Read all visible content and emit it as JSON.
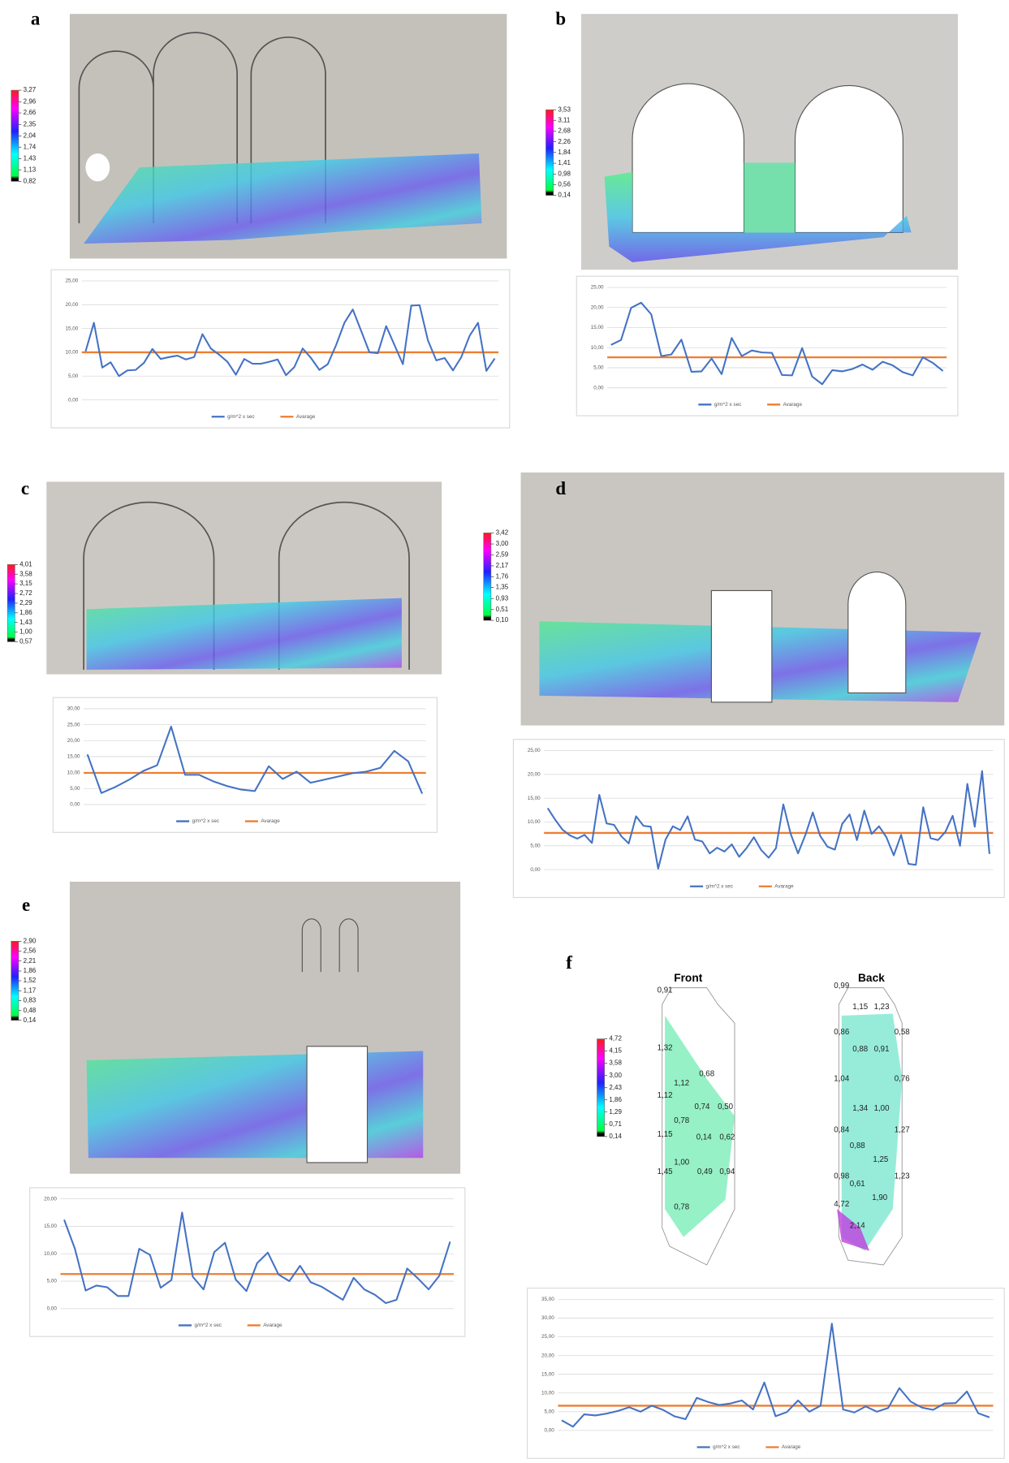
{
  "chart_data": [
    {
      "type": "line",
      "panel": "a",
      "colorbar": {
        "ticks": [
          {
            "value": 3.27,
            "label": "3,27"
          },
          {
            "value": 2.96,
            "label": "2,96"
          },
          {
            "value": 2.66,
            "label": "2,66"
          },
          {
            "value": 2.35,
            "label": "2,35"
          },
          {
            "value": 2.04,
            "label": "2,04"
          },
          {
            "value": 1.74,
            "label": "1,74"
          },
          {
            "value": 1.43,
            "label": "1,43"
          },
          {
            "value": 1.13,
            "label": "1,13"
          },
          {
            "value": 0.82,
            "label": "0,82"
          }
        ]
      },
      "ylim": [
        0,
        25
      ],
      "yticks": [
        {
          "value": 0,
          "label": "0,00"
        },
        {
          "value": 5,
          "label": "5,00"
        },
        {
          "value": 10,
          "label": "10,00"
        },
        {
          "value": 15,
          "label": "15,00"
        },
        {
          "value": 20,
          "label": "20,00"
        },
        {
          "value": 25,
          "label": "25,00"
        }
      ],
      "series": [
        {
          "name": "g/m^2 x sec",
          "color": "#4472c4",
          "values": [
            10.2,
            16.2,
            6.8,
            7.9,
            5.0,
            6.2,
            6.3,
            7.8,
            10.7,
            8.6,
            9.0,
            9.3,
            8.5,
            9.0,
            13.8,
            10.8,
            9.5,
            8.0,
            5.3,
            8.6,
            7.6,
            7.6,
            8.0,
            8.5,
            5.2,
            6.9,
            10.8,
            8.8,
            6.3,
            7.5,
            11.5,
            16.2,
            19.0,
            14.5,
            10.0,
            9.8,
            15.5,
            11.5,
            7.5,
            19.8,
            19.9,
            12.5,
            8.3,
            8.8,
            6.2,
            9.0,
            13.5,
            16.2,
            6.1,
            8.7
          ]
        }
      ],
      "reference_lines": [
        {
          "name": "Avarage",
          "color": "#ed7d31",
          "value": 10.0
        }
      ]
    },
    {
      "type": "line",
      "panel": "b",
      "colorbar": {
        "ticks": [
          {
            "value": 3.53,
            "label": "3,53"
          },
          {
            "value": 3.11,
            "label": "3,11"
          },
          {
            "value": 2.68,
            "label": "2,68"
          },
          {
            "value": 2.26,
            "label": "2,26"
          },
          {
            "value": 1.84,
            "label": "1,84"
          },
          {
            "value": 1.41,
            "label": "1,41"
          },
          {
            "value": 0.98,
            "label": "0,98"
          },
          {
            "value": 0.56,
            "label": "0,56"
          },
          {
            "value": 0.14,
            "label": "0,14"
          }
        ]
      },
      "ylim": [
        0,
        25
      ],
      "yticks": [
        {
          "value": 0,
          "label": "0,00"
        },
        {
          "value": 5,
          "label": "5,00"
        },
        {
          "value": 10,
          "label": "10,00"
        },
        {
          "value": 15,
          "label": "15,00"
        },
        {
          "value": 20,
          "label": "20,00"
        },
        {
          "value": 25,
          "label": "25,00"
        }
      ],
      "series": [
        {
          "name": "g/m^2 x sec",
          "color": "#4472c4",
          "values": [
            10.7,
            11.9,
            19.9,
            21.2,
            18.3,
            7.9,
            8.3,
            12.0,
            4.0,
            4.1,
            7.3,
            3.4,
            12.4,
            7.9,
            9.3,
            8.8,
            8.7,
            3.2,
            3.1,
            9.9,
            2.8,
            0.9,
            4.4,
            4.1,
            4.7,
            5.8,
            4.5,
            6.5,
            5.6,
            3.9,
            3.1,
            7.6,
            6.2,
            4.2
          ]
        }
      ],
      "reference_lines": [
        {
          "name": "Avarage",
          "color": "#ed7d31",
          "value": 7.6
        }
      ]
    },
    {
      "type": "line",
      "panel": "c",
      "colorbar": {
        "ticks": [
          {
            "value": 4.01,
            "label": "4,01"
          },
          {
            "value": 3.58,
            "label": "3,58"
          },
          {
            "value": 3.15,
            "label": "3,15"
          },
          {
            "value": 2.72,
            "label": "2,72"
          },
          {
            "value": 2.29,
            "label": "2,29"
          },
          {
            "value": 1.86,
            "label": "1,86"
          },
          {
            "value": 1.43,
            "label": "1,43"
          },
          {
            "value": 1.0,
            "label": "1,00"
          },
          {
            "value": 0.57,
            "label": "0,57"
          }
        ]
      },
      "ylim": [
        0,
        30
      ],
      "yticks": [
        {
          "value": 0,
          "label": "0,00"
        },
        {
          "value": 5,
          "label": "5,00"
        },
        {
          "value": 10,
          "label": "10,00"
        },
        {
          "value": 15,
          "label": "15,00"
        },
        {
          "value": 20,
          "label": "20,00"
        },
        {
          "value": 25,
          "label": "25,00"
        },
        {
          "value": 30,
          "label": "30,00"
        }
      ],
      "series": [
        {
          "name": "g/m^2 x sec",
          "color": "#4472c4",
          "values": [
            15.7,
            3.6,
            5.5,
            7.8,
            10.5,
            12.3,
            24.4,
            9.3,
            9.3,
            7.3,
            5.8,
            4.7,
            4.2,
            12.0,
            8.0,
            10.3,
            6.8,
            7.8,
            8.8,
            9.8,
            10.3,
            11.5,
            16.8,
            13.5,
            3.4
          ]
        }
      ],
      "reference_lines": [
        {
          "name": "Avarage",
          "color": "#ed7d31",
          "value": 9.9
        }
      ]
    },
    {
      "type": "line",
      "panel": "d",
      "colorbar": {
        "ticks": [
          {
            "value": 3.42,
            "label": "3,42"
          },
          {
            "value": 3.0,
            "label": "3,00"
          },
          {
            "value": 2.59,
            "label": "2,59"
          },
          {
            "value": 2.17,
            "label": "2,17"
          },
          {
            "value": 1.76,
            "label": "1,76"
          },
          {
            "value": 1.35,
            "label": "1,35"
          },
          {
            "value": 0.93,
            "label": "0,93"
          },
          {
            "value": 0.51,
            "label": "0,51"
          },
          {
            "value": 0.1,
            "label": "0,10"
          }
        ]
      },
      "ylim": [
        0,
        25
      ],
      "yticks": [
        {
          "value": 0,
          "label": "0,00"
        },
        {
          "value": 5,
          "label": "5,00"
        },
        {
          "value": 10,
          "label": "10,00"
        },
        {
          "value": 15,
          "label": "15,00"
        },
        {
          "value": 20,
          "label": "20,00"
        },
        {
          "value": 25,
          "label": "25,00"
        }
      ],
      "series": [
        {
          "name": "g/m^2 x sec",
          "color": "#4472c4",
          "values": [
            12.9,
            10.5,
            8.4,
            7.2,
            6.5,
            7.3,
            5.6,
            15.7,
            9.7,
            9.4,
            7.0,
            5.5,
            11.2,
            9.2,
            9.0,
            0.2,
            6.3,
            9.1,
            8.3,
            11.2,
            6.3,
            5.9,
            3.4,
            4.6,
            3.8,
            5.3,
            2.7,
            4.5,
            6.8,
            4.1,
            2.5,
            4.5,
            13.7,
            7.5,
            3.4,
            7.3,
            12.0,
            7.1,
            4.8,
            4.2,
            9.6,
            11.6,
            6.2,
            12.4,
            7.5,
            9.1,
            6.8,
            3.0,
            7.3,
            1.2,
            1.0,
            13.1,
            6.6,
            6.2,
            7.9,
            11.3,
            5.0,
            18.0,
            9.0,
            20.7,
            3.3
          ]
        }
      ],
      "reference_lines": [
        {
          "name": "Avarage",
          "color": "#ed7d31",
          "value": 7.7
        }
      ]
    },
    {
      "type": "line",
      "panel": "e",
      "colorbar": {
        "ticks": [
          {
            "value": 2.9,
            "label": "2,90"
          },
          {
            "value": 2.56,
            "label": "2,56"
          },
          {
            "value": 2.21,
            "label": "2,21"
          },
          {
            "value": 1.86,
            "label": "1,86"
          },
          {
            "value": 1.52,
            "label": "1,52"
          },
          {
            "value": 1.17,
            "label": "1,17"
          },
          {
            "value": 0.83,
            "label": "0,83"
          },
          {
            "value": 0.48,
            "label": "0,48"
          },
          {
            "value": 0.14,
            "label": "0,14"
          }
        ]
      },
      "ylim": [
        0,
        20
      ],
      "yticks": [
        {
          "value": 0,
          "label": "0,00"
        },
        {
          "value": 5,
          "label": "5,00"
        },
        {
          "value": 10,
          "label": "10,00"
        },
        {
          "value": 15,
          "label": "15,00"
        },
        {
          "value": 20,
          "label": "20,00"
        }
      ],
      "series": [
        {
          "name": "g/m^2 x sec",
          "color": "#4472c4",
          "values": [
            16.2,
            10.9,
            3.3,
            4.2,
            3.9,
            2.3,
            2.3,
            10.9,
            9.8,
            3.8,
            5.2,
            17.5,
            5.8,
            3.5,
            10.3,
            12.0,
            5.3,
            3.2,
            8.3,
            10.2,
            6.2,
            5.0,
            7.8,
            4.8,
            4.0,
            2.8,
            1.6,
            5.6,
            3.5,
            2.5,
            1.0,
            1.6,
            7.3,
            5.5,
            3.5,
            6.0,
            12.2
          ]
        }
      ],
      "reference_lines": [
        {
          "name": "Avarage",
          "color": "#ed7d31",
          "value": 6.3
        }
      ]
    },
    {
      "type": "line",
      "panel": "f",
      "views": [
        {
          "title": "Front",
          "labels": [
            "0,91",
            "1,32",
            "0,68",
            "1,12",
            "1,12",
            "0,74",
            "0,50",
            "0,78",
            "1,15",
            "0,14",
            "0,62",
            "1,00",
            "1,45",
            "0,49",
            "0,94",
            "0,78"
          ]
        },
        {
          "title": "Back",
          "labels": [
            "0,99",
            "1,15",
            "1,23",
            "0,86",
            "0,58",
            "0,88",
            "0,91",
            "1,04",
            "0,76",
            "1,34",
            "1,00",
            "0,84",
            "1,27",
            "0,88",
            "1,25",
            "0,98",
            "0,61",
            "1,23",
            "4,72",
            "1,90",
            "2,14"
          ]
        }
      ],
      "colorbar": {
        "ticks": [
          {
            "value": 4.72,
            "label": "4,72"
          },
          {
            "value": 4.15,
            "label": "4,15"
          },
          {
            "value": 3.58,
            "label": "3,58"
          },
          {
            "value": 3.0,
            "label": "3,00"
          },
          {
            "value": 2.43,
            "label": "2,43"
          },
          {
            "value": 1.86,
            "label": "1,86"
          },
          {
            "value": 1.29,
            "label": "1,29"
          },
          {
            "value": 0.71,
            "label": "0,71"
          },
          {
            "value": 0.14,
            "label": "0,14"
          }
        ]
      },
      "ylim": [
        0,
        35
      ],
      "yticks": [
        {
          "value": 0,
          "label": "0,00"
        },
        {
          "value": 5,
          "label": "5,00"
        },
        {
          "value": 10,
          "label": "10,00"
        },
        {
          "value": 15,
          "label": "15,00"
        },
        {
          "value": 20,
          "label": "20,00"
        },
        {
          "value": 25,
          "label": "25,00"
        },
        {
          "value": 30,
          "label": "30,00"
        },
        {
          "value": 35,
          "label": "35,00"
        }
      ],
      "series": [
        {
          "name": "g/m^2 x sec",
          "color": "#4472c4",
          "values": [
            2.7,
            1.0,
            4.3,
            4.0,
            4.5,
            5.2,
            6.2,
            5.0,
            6.6,
            5.5,
            3.8,
            3.0,
            8.7,
            7.6,
            6.8,
            7.2,
            8.0,
            5.6,
            12.8,
            3.8,
            4.9,
            8.0,
            5.0,
            6.6,
            28.5,
            5.6,
            4.8,
            6.4,
            5.0,
            6.0,
            11.3,
            7.7,
            6.1,
            5.5,
            7.2,
            7.3,
            10.4,
            4.6,
            3.5
          ]
        }
      ],
      "reference_lines": [
        {
          "name": "Avarage",
          "color": "#ed7d31",
          "value": 6.6
        }
      ]
    }
  ]
}
